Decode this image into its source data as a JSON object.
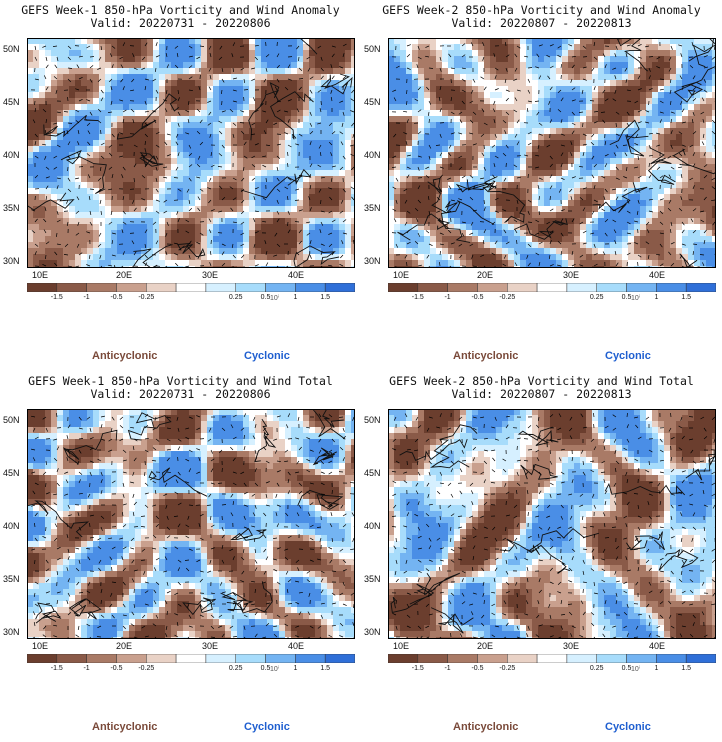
{
  "panels": [
    {
      "title": "GEFS Week-1 850-hPa Vorticity and Wind Anomaly",
      "valid": "Valid: 20220731 - 20220806",
      "seed": 11
    },
    {
      "title": "GEFS Week-2 850-hPa Vorticity and Wind Anomaly",
      "valid": "Valid: 20220807 - 20220813",
      "seed": 23
    },
    {
      "title": "GEFS Week-1 850-hPa Vorticity and Wind Total",
      "valid": "Valid: 20220731 - 20220806",
      "seed": 37
    },
    {
      "title": "GEFS Week-2 850-hPa Vorticity and Wind Total",
      "valid": "Valid: 20220807 - 20220813",
      "seed": 53
    }
  ],
  "lat_labels": [
    "50N",
    "45N",
    "40N",
    "35N",
    "30N"
  ],
  "lon_labels": [
    "10E",
    "20E",
    "30E",
    "40E"
  ],
  "colorbar": {
    "labels": [
      "-1.5",
      "-1",
      "-0.5",
      "-0.25",
      "0.25",
      "0.5",
      "1",
      "1.5"
    ],
    "center_text": "10ⁱ",
    "colors": [
      "#6b3e2e",
      "#8a5a48",
      "#a97a66",
      "#c9a08e",
      "#e9d2c6",
      "#ffffff",
      "#d6f0ff",
      "#a7dcfb",
      "#74b4f2",
      "#4a8ee6",
      "#2f6fd8"
    ]
  },
  "legend": {
    "anticyclonic": "Anticyclonic",
    "cyclonic": "Cyclonic"
  }
}
